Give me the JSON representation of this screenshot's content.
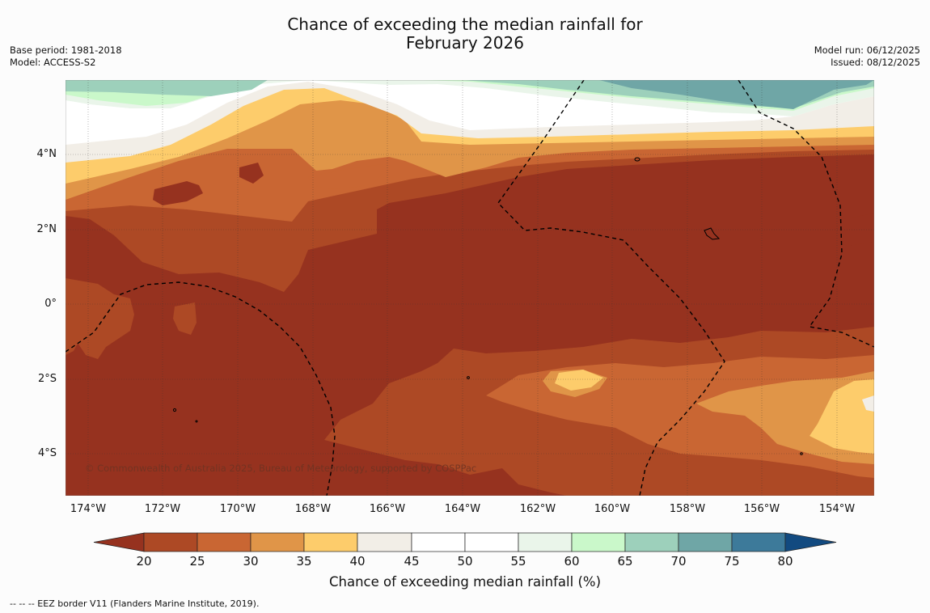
{
  "title": {
    "line1": "Chance of exceeding the median rainfall for",
    "line2": "February 2026"
  },
  "meta_left": {
    "base_period": "Base period: 1981-2018",
    "model": "Model: ACCESS-S2"
  },
  "meta_right": {
    "model_run": "Model run: 06/12/2025",
    "issued": "Issued: 08/12/2025"
  },
  "map": {
    "copyright": "© Commonwealth of Australia 2025, Bureau of Meteorology, supported by COSPPac",
    "lat_labels": [
      "4°N",
      "2°N",
      "0°",
      "2°S",
      "4°S"
    ],
    "lon_labels": [
      "174°W",
      "172°W",
      "170°W",
      "168°W",
      "166°W",
      "164°W",
      "162°W",
      "160°W",
      "158°W",
      "156°W",
      "154°W"
    ]
  },
  "colorbar": {
    "title": "Chance of exceeding median rainfall (%)",
    "ticks": [
      "20",
      "25",
      "30",
      "35",
      "40",
      "45",
      "50",
      "55",
      "60",
      "65",
      "70",
      "75",
      "80"
    ],
    "colors": {
      "below_20": "#96321f",
      "b20_25": "#ad4925",
      "b25_30": "#c96633",
      "b30_35": "#e09548",
      "b35_40": "#fdcc6b",
      "b40_45": "#f2eee7",
      "b45_55": "#ffffff",
      "b55_60": "#eaf5ea",
      "b60_65": "#caf8ca",
      "b65_70": "#9dd0bb",
      "b70_75": "#6fa6a6",
      "b75_80": "#3d7a9a",
      "above_80": "#124a80"
    }
  },
  "legend_note": "--  --  -- EEZ border V11 (Flanders Marine Institute, 2019)."
}
